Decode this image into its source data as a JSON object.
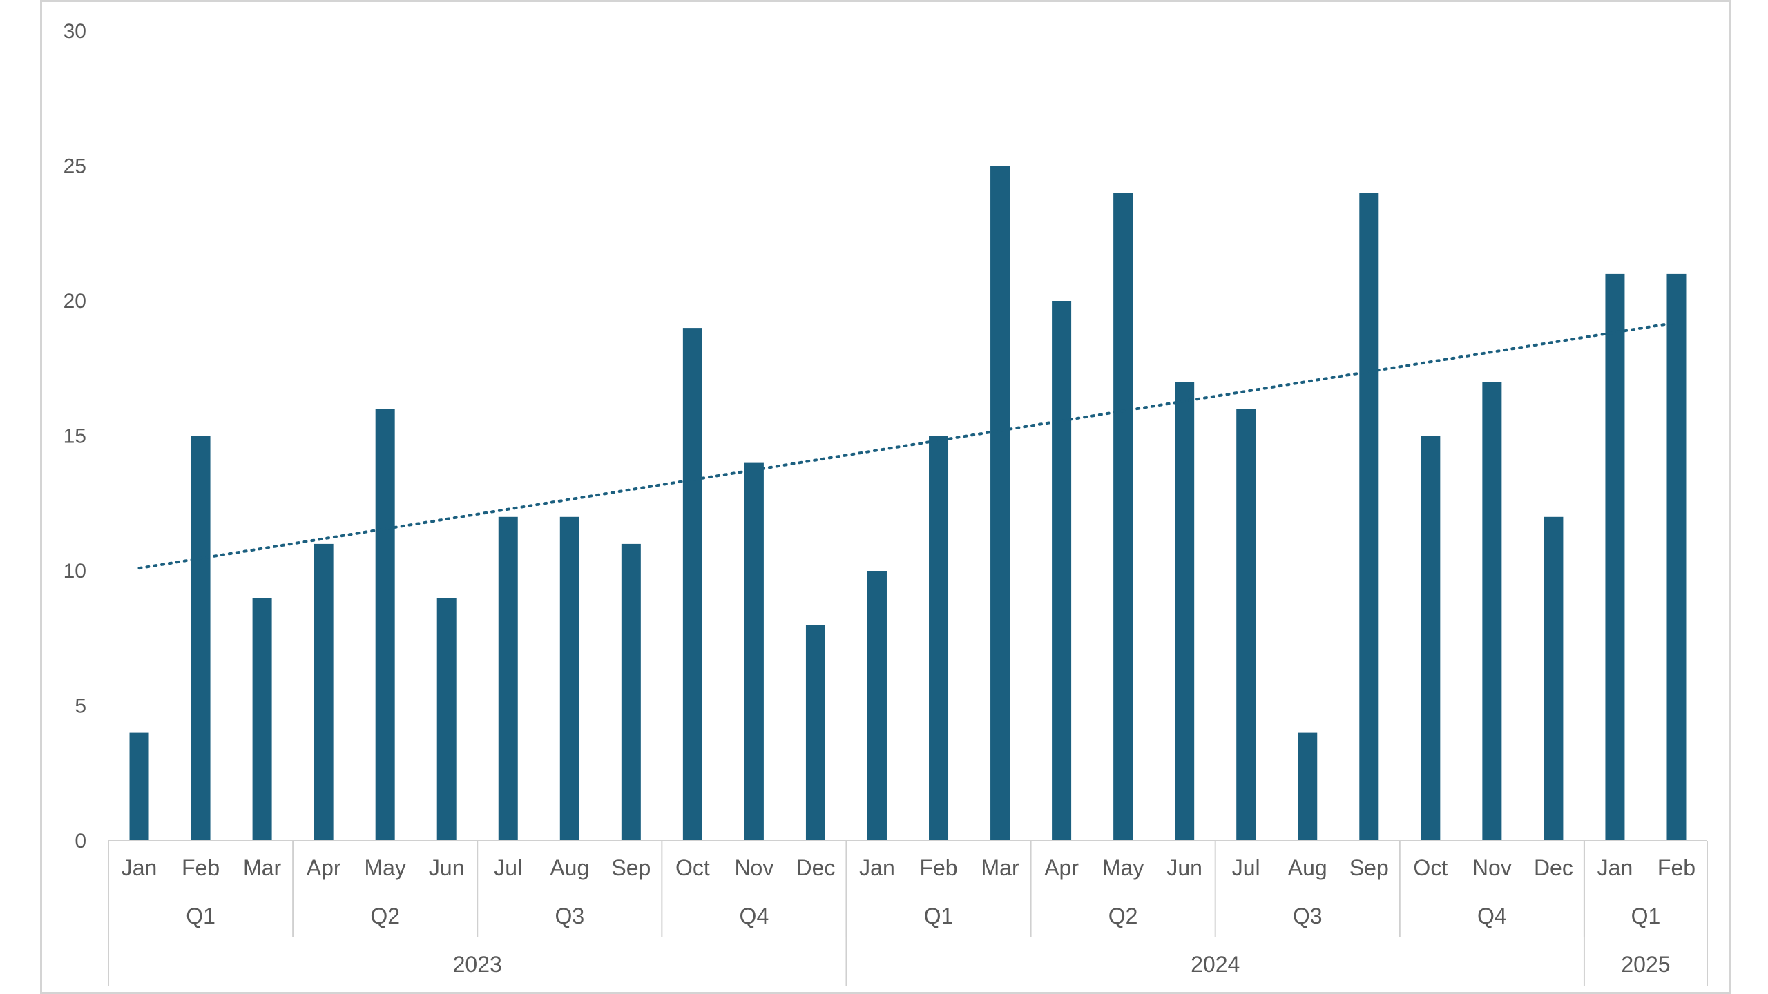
{
  "chart_data": {
    "type": "bar",
    "title": "",
    "xlabel": "",
    "ylabel": "",
    "ylim": [
      0,
      30
    ],
    "yticks": [
      0,
      5,
      10,
      15,
      20,
      25,
      30
    ],
    "grid": false,
    "legend": "none",
    "bar_color": "#1b5f7f",
    "trendline": {
      "type": "linear",
      "style": "dotted",
      "color": "#1b5f7f",
      "start": 10.1,
      "end": 19.2
    },
    "months": [
      "Jan",
      "Feb",
      "Mar",
      "Apr",
      "May",
      "Jun",
      "Jul",
      "Aug",
      "Sep",
      "Oct",
      "Nov",
      "Dec",
      "Jan",
      "Feb",
      "Mar",
      "Apr",
      "May",
      "Jun",
      "Jul",
      "Aug",
      "Sep",
      "Oct",
      "Nov",
      "Dec",
      "Jan",
      "Feb"
    ],
    "values": [
      4,
      15,
      9,
      11,
      16,
      9,
      12,
      12,
      11,
      19,
      14,
      8,
      10,
      15,
      25,
      20,
      24,
      17,
      16,
      4,
      24,
      15,
      17,
      12,
      21,
      21
    ],
    "quarters": [
      {
        "label": "Q1",
        "count": 3
      },
      {
        "label": "Q2",
        "count": 3
      },
      {
        "label": "Q3",
        "count": 3
      },
      {
        "label": "Q4",
        "count": 3
      },
      {
        "label": "Q1",
        "count": 3
      },
      {
        "label": "Q2",
        "count": 3
      },
      {
        "label": "Q3",
        "count": 3
      },
      {
        "label": "Q4",
        "count": 3
      },
      {
        "label": "Q1",
        "count": 2
      }
    ],
    "years": [
      {
        "label": "2023",
        "count": 12
      },
      {
        "label": "2024",
        "count": 12
      },
      {
        "label": "2025",
        "count": 2
      }
    ]
  }
}
